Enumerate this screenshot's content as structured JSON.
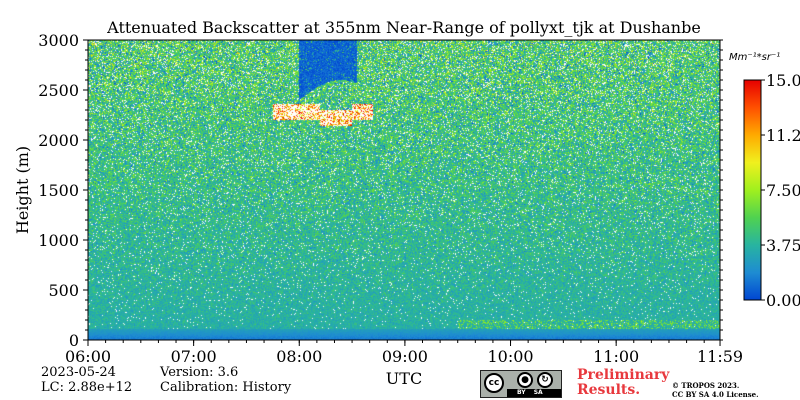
{
  "chart_data": {
    "type": "heatmap",
    "title": "Attenuated Backscatter at 355nm Near-Range of pollyxt_tjk at Dushanbe",
    "xlabel": "UTC",
    "ylabel": "Height (m)",
    "x_ticks": [
      "06:00",
      "07:00",
      "08:00",
      "09:00",
      "10:00",
      "11:00",
      "11:59"
    ],
    "x_range_hours": [
      6.0,
      11.983
    ],
    "y_ticks": [
      0,
      500,
      1000,
      1500,
      2000,
      2500,
      3000
    ],
    "ylim": [
      0,
      3000
    ],
    "colorbar": {
      "unit_label": "Mm⁻¹*sr⁻¹",
      "ticks": [
        "0.00",
        "3.75",
        "7.50",
        "11.25",
        "15.00"
      ],
      "range": [
        0,
        15
      ],
      "colormap": [
        "#0046d2",
        "#1e8cd2",
        "#28b4a0",
        "#50d250",
        "#a0f01e",
        "#f0f01e",
        "#ffaa00",
        "#ff5000",
        "#e60000"
      ]
    },
    "features": {
      "surface_layer_height_m": [
        0,
        110
      ],
      "surface_layer_value": 1.0,
      "background_value_low": 3.5,
      "background_value_high": 5.0,
      "cloud": {
        "time_start": 7.75,
        "time_end": 8.7,
        "height_base_m": 2200,
        "height_top_m": 2600,
        "value": 15
      },
      "no_signal_above_cloud": {
        "time_start": 8.0,
        "time_end": 8.55,
        "height_from_m": 2400
      }
    }
  },
  "meta": {
    "date": "2023-05-24",
    "lc": "LC: 2.88e+12",
    "version": "Version: 3.6",
    "calibration": "Calibration: History"
  },
  "footer": {
    "preliminary_line1": "Preliminary",
    "preliminary_line2": "Results.",
    "copyright_line1": "© TROPOS 2023.",
    "copyright_line2": "CC BY SA 4.0 License.",
    "badge_cc": "cc",
    "badge_by": "BY",
    "badge_sa": "SA"
  }
}
